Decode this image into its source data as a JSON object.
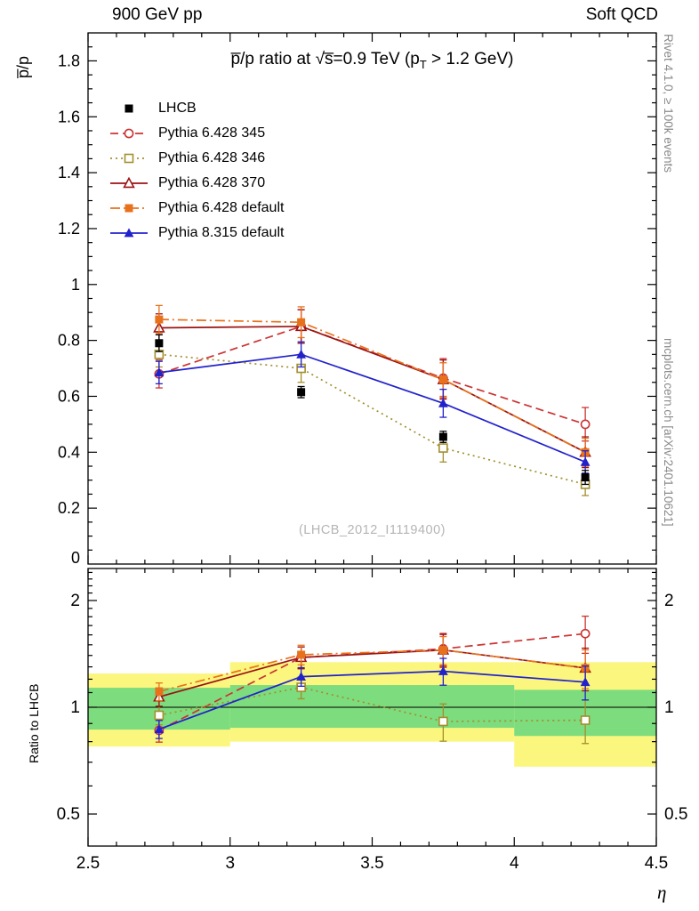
{
  "header": {
    "left": "900 GeV pp",
    "right": "Soft QCD"
  },
  "side_notes": {
    "top_right": "Rivet 4.1.0, ≥ 100k events",
    "bottom_right": "mcplots.cern.ch [arXiv:2401.10621]"
  },
  "watermark": "(LHCB_2012_I1119400)",
  "chart_data": {
    "type": "line",
    "title": {
      "pre": "p̅/p ratio at √s̅=0.9 TeV (p",
      "sub": "T",
      "post": " > 1.2 GeV)"
    },
    "xlabel": "η",
    "xlim": [
      2.5,
      4.5
    ],
    "x_major_ticks": [
      2.5,
      3,
      3.5,
      4,
      4.5
    ],
    "x_tick_labels": [
      "2.5",
      "3",
      "3.5",
      "4",
      "4.5"
    ],
    "x": [
      2.75,
      3.25,
      3.75,
      4.25
    ],
    "top_panel": {
      "ylabel": "p̅/p",
      "ylim": [
        0,
        1.9
      ],
      "y_major_step": 0.2,
      "y_minor_step": 0.05,
      "scale": "linear"
    },
    "ratio_panel": {
      "ylabel": "Ratio to LHCB",
      "scale": "log",
      "ylim": [
        0.406,
        2.46
      ],
      "y_ticks": [
        0.5,
        1,
        2
      ],
      "y_tick_labels": [
        "0.5",
        "1",
        "2"
      ],
      "y_minor_ticks": [
        0.6,
        0.7,
        0.8,
        0.9,
        1.1,
        1.2,
        1.3,
        1.4,
        1.5,
        1.6,
        1.7,
        1.8,
        1.9,
        2.1,
        2.2,
        2.3,
        2.4
      ],
      "reference_line": 1,
      "bands": {
        "bin_edges": [
          2.5,
          3,
          3.5,
          4,
          4.5
        ],
        "yellow": [
          [
            0.775,
            1.245
          ],
          [
            0.8,
            1.34
          ],
          [
            0.8,
            1.34
          ],
          [
            0.68,
            1.34
          ]
        ],
        "green": [
          [
            0.865,
            1.135
          ],
          [
            0.875,
            1.155
          ],
          [
            0.875,
            1.155
          ],
          [
            0.83,
            1.12
          ]
        ],
        "colors": {
          "yellow": "#fbf67e",
          "green": "#7ddc7d"
        }
      }
    },
    "reference": {
      "name": "LHCB",
      "color": "#000000",
      "marker": "square-filled",
      "values": [
        0.79,
        0.615,
        0.455,
        0.31
      ],
      "errors": [
        0.03,
        0.02,
        0.02,
        0.025
      ]
    },
    "series": [
      {
        "label": "Pythia 6.428 345",
        "color": "#cc3333",
        "line": "dashed",
        "marker": "circle-open",
        "values": [
          0.68,
          0.85,
          0.665,
          0.5
        ],
        "errors": [
          0.05,
          0.06,
          0.07,
          0.06
        ]
      },
      {
        "label": "Pythia 6.428 346",
        "color": "#a38f2d",
        "line": "dotted",
        "marker": "square-open",
        "values": [
          0.75,
          0.7,
          0.415,
          0.285
        ],
        "errors": [
          0.045,
          0.05,
          0.05,
          0.04
        ]
      },
      {
        "label": "Pythia 6.428 370",
        "color": "#9b1313",
        "line": "solid",
        "marker": "triangle-open",
        "values": [
          0.845,
          0.85,
          0.66,
          0.4
        ],
        "errors": [
          0.05,
          0.06,
          0.07,
          0.055
        ]
      },
      {
        "label": "Pythia 6.428 default",
        "color": "#e8721c",
        "line": "dashdot",
        "marker": "square-filled",
        "values": [
          0.875,
          0.865,
          0.66,
          0.4
        ],
        "errors": [
          0.05,
          0.055,
          0.06,
          0.05
        ]
      },
      {
        "label": "Pythia 8.315 default",
        "color": "#2222cc",
        "line": "solid",
        "marker": "triangle-filled",
        "values": [
          0.685,
          0.75,
          0.575,
          0.365
        ],
        "errors": [
          0.04,
          0.045,
          0.05,
          0.04
        ]
      }
    ]
  }
}
